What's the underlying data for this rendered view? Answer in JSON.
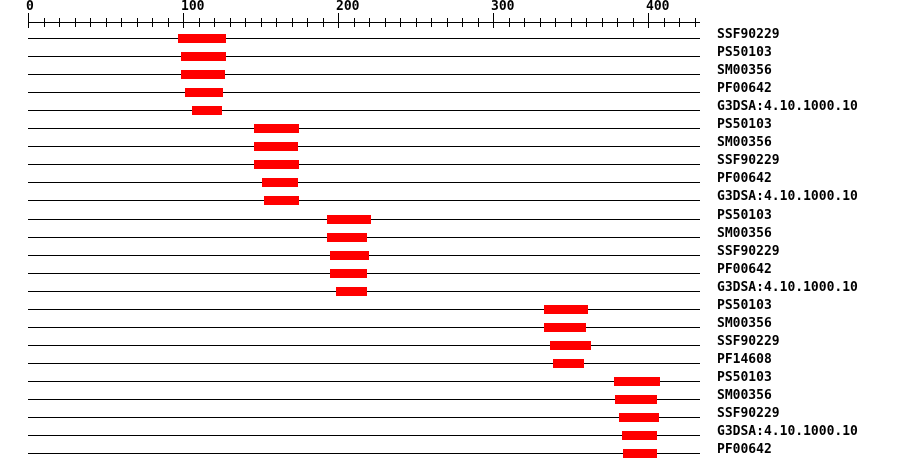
{
  "chart_data": {
    "type": "bar",
    "subtype": "protein-domain-feature-track",
    "orientation": "horizontal",
    "title": "",
    "axis": {
      "position": "top",
      "min": 0,
      "max": 434,
      "major_ticks": [
        0,
        100,
        200,
        300,
        400
      ],
      "minor_tick_interval": 10,
      "last_tick": 430,
      "grid": false
    },
    "colors": {
      "bar": "#ff0000",
      "line": "#000000",
      "text": "#000000",
      "background": "#ffffff"
    },
    "legend_position": "right-labels",
    "rows": [
      {
        "label": "SSF90229",
        "start": 97,
        "end": 128
      },
      {
        "label": "PS50103",
        "start": 99,
        "end": 128
      },
      {
        "label": "SM00356",
        "start": 99,
        "end": 127
      },
      {
        "label": "PF00642",
        "start": 101,
        "end": 126
      },
      {
        "label": "G3DSA:4.10.1000.10",
        "start": 106,
        "end": 125
      },
      {
        "label": "PS50103",
        "start": 146,
        "end": 175
      },
      {
        "label": "SM00356",
        "start": 146,
        "end": 174
      },
      {
        "label": "SSF90229",
        "start": 146,
        "end": 175
      },
      {
        "label": "PF00642",
        "start": 151,
        "end": 174
      },
      {
        "label": "G3DSA:4.10.1000.10",
        "start": 152,
        "end": 175
      },
      {
        "label": "PS50103",
        "start": 193,
        "end": 221
      },
      {
        "label": "SM00356",
        "start": 193,
        "end": 219
      },
      {
        "label": "SSF90229",
        "start": 195,
        "end": 220
      },
      {
        "label": "PF00642",
        "start": 195,
        "end": 219
      },
      {
        "label": "G3DSA:4.10.1000.10",
        "start": 199,
        "end": 219
      },
      {
        "label": "PS50103",
        "start": 333,
        "end": 361
      },
      {
        "label": "SM00356",
        "start": 333,
        "end": 360
      },
      {
        "label": "SSF90229",
        "start": 337,
        "end": 363
      },
      {
        "label": "PF14608",
        "start": 339,
        "end": 359
      },
      {
        "label": "PS50103",
        "start": 378,
        "end": 408
      },
      {
        "label": "SM00356",
        "start": 379,
        "end": 406
      },
      {
        "label": "SSF90229",
        "start": 381,
        "end": 407
      },
      {
        "label": "G3DSA:4.10.1000.10",
        "start": 383,
        "end": 406
      },
      {
        "label": "PF00642",
        "start": 384,
        "end": 406
      }
    ]
  }
}
